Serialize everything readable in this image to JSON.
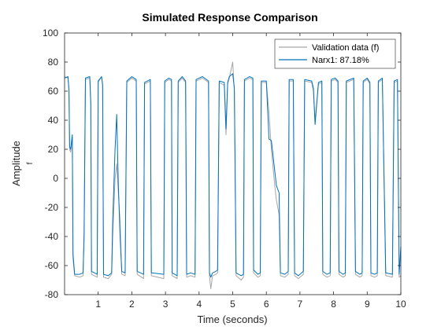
{
  "chart_data": {
    "type": "line",
    "title": "Simulated Response Comparison",
    "xlabel": "Time (seconds)",
    "ylabel": "Amplitude",
    "ylabel_sub": "f",
    "xlim": [
      0,
      10
    ],
    "ylim": [
      -80,
      100
    ],
    "xticks": [
      1,
      2,
      3,
      4,
      5,
      6,
      7,
      8,
      9,
      10
    ],
    "yticks": [
      -80,
      -60,
      -40,
      -20,
      0,
      20,
      40,
      60,
      80,
      100
    ],
    "grid": false,
    "legend_position": "top-right",
    "series": [
      {
        "name": "Validation data (f)",
        "color": "#a6a6a6",
        "points": [
          [
            0.0,
            70
          ],
          [
            0.1,
            69
          ],
          [
            0.13,
            62
          ],
          [
            0.15,
            20
          ],
          [
            0.18,
            18
          ],
          [
            0.23,
            28
          ],
          [
            0.25,
            -55
          ],
          [
            0.3,
            -67
          ],
          [
            0.45,
            -68
          ],
          [
            0.55,
            -67
          ],
          [
            0.58,
            -40
          ],
          [
            0.62,
            68
          ],
          [
            0.75,
            69
          ],
          [
            0.78,
            50
          ],
          [
            0.8,
            -66
          ],
          [
            0.97,
            -68
          ],
          [
            1.0,
            66
          ],
          [
            1.1,
            70
          ],
          [
            1.13,
            65
          ],
          [
            1.16,
            -68
          ],
          [
            1.3,
            -69
          ],
          [
            1.4,
            -66
          ],
          [
            1.43,
            -40
          ],
          [
            1.5,
            0
          ],
          [
            1.55,
            10
          ],
          [
            1.6,
            -10
          ],
          [
            1.65,
            -30
          ],
          [
            1.7,
            -66
          ],
          [
            1.8,
            -67
          ],
          [
            1.85,
            66
          ],
          [
            2.0,
            69
          ],
          [
            2.13,
            67
          ],
          [
            2.16,
            -66
          ],
          [
            2.35,
            -69
          ],
          [
            2.38,
            65
          ],
          [
            2.55,
            67
          ],
          [
            2.58,
            -67
          ],
          [
            2.95,
            -69
          ],
          [
            2.98,
            66
          ],
          [
            3.1,
            68
          ],
          [
            3.18,
            67
          ],
          [
            3.2,
            -67
          ],
          [
            3.35,
            -69
          ],
          [
            3.38,
            66
          ],
          [
            3.5,
            69
          ],
          [
            3.6,
            66
          ],
          [
            3.63,
            -68
          ],
          [
            3.75,
            -67
          ],
          [
            3.88,
            -68
          ],
          [
            3.91,
            67
          ],
          [
            4.1,
            69
          ],
          [
            4.28,
            66
          ],
          [
            4.31,
            -67
          ],
          [
            4.35,
            -76
          ],
          [
            4.4,
            -67
          ],
          [
            4.5,
            -66
          ],
          [
            4.55,
            -65
          ],
          [
            4.6,
            66
          ],
          [
            4.75,
            64
          ],
          [
            4.8,
            30
          ],
          [
            4.85,
            65
          ],
          [
            4.9,
            69
          ],
          [
            5.0,
            80
          ],
          [
            5.05,
            60
          ],
          [
            5.1,
            -67
          ],
          [
            5.25,
            -70
          ],
          [
            5.32,
            -68
          ],
          [
            5.35,
            67
          ],
          [
            5.5,
            69
          ],
          [
            5.6,
            68
          ],
          [
            5.62,
            -65
          ],
          [
            5.75,
            -68
          ],
          [
            5.82,
            -67
          ],
          [
            5.85,
            66
          ],
          [
            6.0,
            66
          ],
          [
            6.08,
            45
          ],
          [
            6.15,
            20
          ],
          [
            6.25,
            -5
          ],
          [
            6.3,
            -15
          ],
          [
            6.38,
            -25
          ],
          [
            6.42,
            -67
          ],
          [
            6.55,
            -68
          ],
          [
            6.65,
            -66
          ],
          [
            6.68,
            67
          ],
          [
            6.8,
            67
          ],
          [
            6.84,
            -67
          ],
          [
            6.95,
            -69
          ],
          [
            7.1,
            -66
          ],
          [
            7.14,
            67
          ],
          [
            7.35,
            66
          ],
          [
            7.4,
            60
          ],
          [
            7.45,
            40
          ],
          [
            7.55,
            65
          ],
          [
            7.65,
            66
          ],
          [
            7.68,
            -66
          ],
          [
            7.8,
            -68
          ],
          [
            7.9,
            -67
          ],
          [
            7.93,
            67
          ],
          [
            8.05,
            68
          ],
          [
            8.13,
            66
          ],
          [
            8.16,
            -66
          ],
          [
            8.28,
            -68
          ],
          [
            8.35,
            -67
          ],
          [
            8.38,
            66
          ],
          [
            8.6,
            68
          ],
          [
            8.65,
            -66
          ],
          [
            8.78,
            -68
          ],
          [
            8.85,
            -67
          ],
          [
            8.88,
            66
          ],
          [
            9.0,
            68
          ],
          [
            9.08,
            65
          ],
          [
            9.11,
            -67
          ],
          [
            9.22,
            -68
          ],
          [
            9.3,
            -67
          ],
          [
            9.33,
            66
          ],
          [
            9.45,
            68
          ],
          [
            9.55,
            -67
          ],
          [
            9.75,
            -68
          ],
          [
            9.8,
            66
          ],
          [
            9.9,
            67
          ],
          [
            9.95,
            -68
          ],
          [
            10.0,
            -67
          ]
        ]
      },
      {
        "name": "Narx1: 87.18%",
        "color": "#0072bd",
        "points": [
          [
            0.0,
            69
          ],
          [
            0.1,
            70
          ],
          [
            0.13,
            60
          ],
          [
            0.15,
            22
          ],
          [
            0.18,
            20
          ],
          [
            0.23,
            30
          ],
          [
            0.25,
            -52
          ],
          [
            0.3,
            -66
          ],
          [
            0.45,
            -66
          ],
          [
            0.55,
            -65
          ],
          [
            0.58,
            -38
          ],
          [
            0.62,
            69
          ],
          [
            0.75,
            70
          ],
          [
            0.78,
            52
          ],
          [
            0.8,
            -64
          ],
          [
            0.97,
            -66
          ],
          [
            1.0,
            67
          ],
          [
            1.1,
            70
          ],
          [
            1.13,
            64
          ],
          [
            1.16,
            -66
          ],
          [
            1.3,
            -67
          ],
          [
            1.4,
            -65
          ],
          [
            1.43,
            -30
          ],
          [
            1.5,
            20
          ],
          [
            1.55,
            44
          ],
          [
            1.6,
            -5
          ],
          [
            1.65,
            -40
          ],
          [
            1.7,
            -64
          ],
          [
            1.8,
            -65
          ],
          [
            1.85,
            67
          ],
          [
            2.0,
            70
          ],
          [
            2.13,
            68
          ],
          [
            2.16,
            -64
          ],
          [
            2.35,
            -66
          ],
          [
            2.38,
            66
          ],
          [
            2.55,
            68
          ],
          [
            2.58,
            -65
          ],
          [
            2.95,
            -66
          ],
          [
            2.98,
            67
          ],
          [
            3.1,
            69
          ],
          [
            3.18,
            68
          ],
          [
            3.2,
            -65
          ],
          [
            3.35,
            -67
          ],
          [
            3.38,
            67
          ],
          [
            3.5,
            70
          ],
          [
            3.6,
            67
          ],
          [
            3.63,
            -66
          ],
          [
            3.75,
            -65
          ],
          [
            3.88,
            -66
          ],
          [
            3.91,
            68
          ],
          [
            4.1,
            70
          ],
          [
            4.28,
            67
          ],
          [
            4.31,
            -65
          ],
          [
            4.35,
            -68
          ],
          [
            4.4,
            -65
          ],
          [
            4.5,
            -64
          ],
          [
            4.55,
            -63
          ],
          [
            4.6,
            67
          ],
          [
            4.75,
            66
          ],
          [
            4.8,
            34
          ],
          [
            4.85,
            66
          ],
          [
            4.9,
            70
          ],
          [
            5.0,
            72
          ],
          [
            5.05,
            62
          ],
          [
            5.1,
            -65
          ],
          [
            5.25,
            -67
          ],
          [
            5.32,
            -66
          ],
          [
            5.35,
            68
          ],
          [
            5.5,
            70
          ],
          [
            5.6,
            69
          ],
          [
            5.62,
            -63
          ],
          [
            5.75,
            -66
          ],
          [
            5.82,
            -65
          ],
          [
            5.85,
            67
          ],
          [
            6.0,
            67
          ],
          [
            6.08,
            27
          ],
          [
            6.15,
            26
          ],
          [
            6.25,
            5
          ],
          [
            6.3,
            -5
          ],
          [
            6.38,
            -10
          ],
          [
            6.42,
            -65
          ],
          [
            6.55,
            -66
          ],
          [
            6.65,
            -64
          ],
          [
            6.68,
            68
          ],
          [
            6.8,
            68
          ],
          [
            6.84,
            -65
          ],
          [
            6.95,
            -67
          ],
          [
            7.1,
            -64
          ],
          [
            7.14,
            68
          ],
          [
            7.35,
            67
          ],
          [
            7.4,
            62
          ],
          [
            7.45,
            37
          ],
          [
            7.55,
            66
          ],
          [
            7.65,
            67
          ],
          [
            7.68,
            -64
          ],
          [
            7.8,
            -66
          ],
          [
            7.9,
            -65
          ],
          [
            7.93,
            68
          ],
          [
            8.05,
            69
          ],
          [
            8.13,
            67
          ],
          [
            8.16,
            -64
          ],
          [
            8.28,
            -66
          ],
          [
            8.35,
            -65
          ],
          [
            8.38,
            67
          ],
          [
            8.6,
            69
          ],
          [
            8.65,
            -64
          ],
          [
            8.78,
            -66
          ],
          [
            8.85,
            -65
          ],
          [
            8.88,
            67
          ],
          [
            9.0,
            69
          ],
          [
            9.08,
            66
          ],
          [
            9.11,
            -65
          ],
          [
            9.22,
            -66
          ],
          [
            9.3,
            -65
          ],
          [
            9.33,
            67
          ],
          [
            9.45,
            69
          ],
          [
            9.55,
            -65
          ],
          [
            9.75,
            -66
          ],
          [
            9.8,
            67
          ],
          [
            9.9,
            68
          ],
          [
            9.95,
            -66
          ],
          [
            10.0,
            -47
          ]
        ]
      }
    ]
  }
}
